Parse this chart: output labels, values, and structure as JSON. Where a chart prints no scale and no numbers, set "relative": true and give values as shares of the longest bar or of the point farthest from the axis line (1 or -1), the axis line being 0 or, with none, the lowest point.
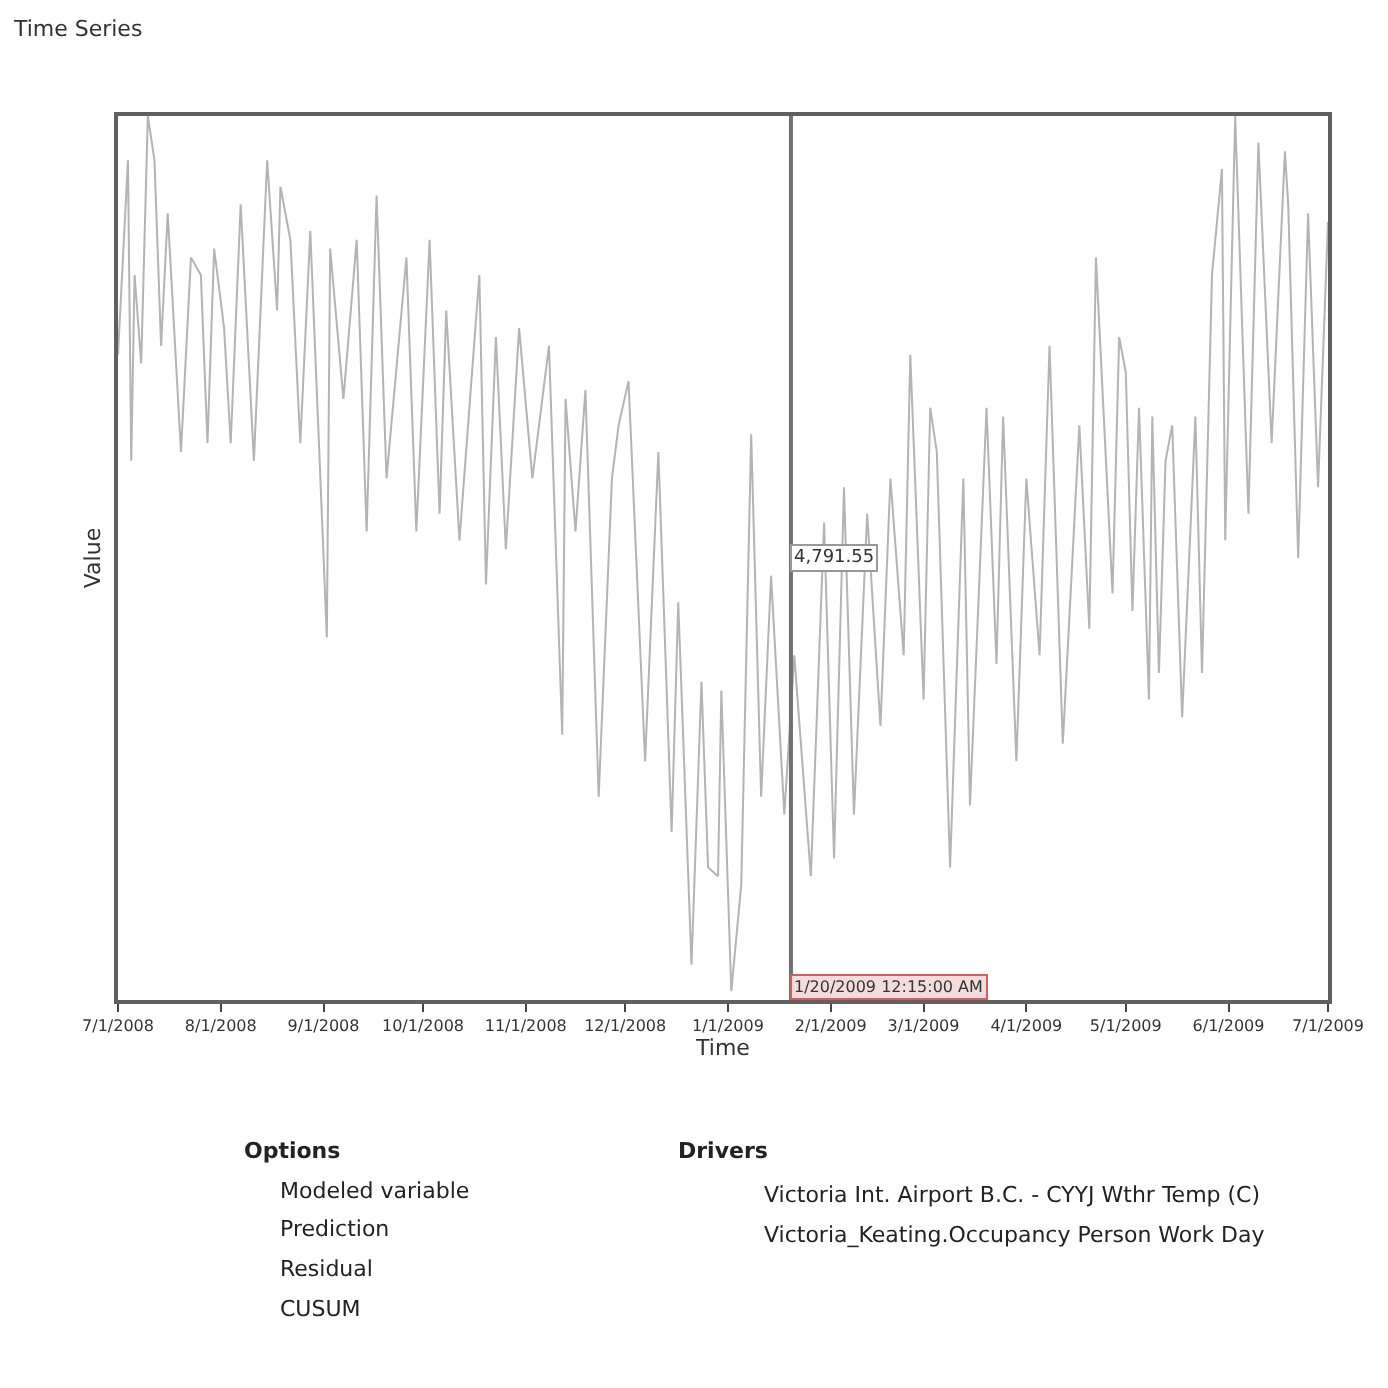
{
  "chart_data": {
    "type": "line",
    "title": "Time Series",
    "xlabel": "Time",
    "ylabel": "Value",
    "relative": true,
    "x": [
      "2008-07-01",
      "2008-07-04",
      "2008-07-05",
      "2008-07-06",
      "2008-07-08",
      "2008-07-10",
      "2008-07-12",
      "2008-07-14",
      "2008-07-16",
      "2008-07-20",
      "2008-07-23",
      "2008-07-26",
      "2008-07-28",
      "2008-07-30",
      "2008-08-02",
      "2008-08-04",
      "2008-08-07",
      "2008-08-11",
      "2008-08-15",
      "2008-08-18",
      "2008-08-19",
      "2008-08-22",
      "2008-08-25",
      "2008-08-28",
      "2008-09-02",
      "2008-09-03",
      "2008-09-07",
      "2008-09-11",
      "2008-09-14",
      "2008-09-17",
      "2008-09-20",
      "2008-09-26",
      "2008-09-29",
      "2008-10-03",
      "2008-10-06",
      "2008-10-08",
      "2008-10-12",
      "2008-10-18",
      "2008-10-20",
      "2008-10-23",
      "2008-10-26",
      "2008-10-30",
      "2008-11-03",
      "2008-11-08",
      "2008-11-12",
      "2008-11-13",
      "2008-11-16",
      "2008-11-19",
      "2008-11-23",
      "2008-11-27",
      "2008-11-29",
      "2008-12-02",
      "2008-12-07",
      "2008-12-11",
      "2008-12-15",
      "2008-12-17",
      "2008-12-21",
      "2008-12-24",
      "2008-12-26",
      "2008-12-29",
      "2008-12-30",
      "2009-01-02",
      "2009-01-05",
      "2009-01-08",
      "2009-01-11",
      "2009-01-14",
      "2009-01-18",
      "2009-01-21",
      "2009-01-26",
      "2009-01-30",
      "2009-02-02",
      "2009-02-05",
      "2009-02-08",
      "2009-02-12",
      "2009-02-16",
      "2009-02-19",
      "2009-02-23",
      "2009-02-25",
      "2009-03-01",
      "2009-03-03",
      "2009-03-05",
      "2009-03-09",
      "2009-03-13",
      "2009-03-15",
      "2009-03-20",
      "2009-03-23",
      "2009-03-25",
      "2009-03-29",
      "2009-04-01",
      "2009-04-05",
      "2009-04-08",
      "2009-04-12",
      "2009-04-17",
      "2009-04-20",
      "2009-04-22",
      "2009-04-27",
      "2009-04-29",
      "2009-05-01",
      "2009-05-03",
      "2009-05-05",
      "2009-05-08",
      "2009-05-09",
      "2009-05-11",
      "2009-05-13",
      "2009-05-15",
      "2009-05-18",
      "2009-05-22",
      "2009-05-24",
      "2009-05-27",
      "2009-05-30",
      "2009-05-31",
      "2009-06-03",
      "2009-06-07",
      "2009-06-10",
      "2009-06-14",
      "2009-06-18",
      "2009-06-19",
      "2009-06-22",
      "2009-06-25",
      "2009-06-28",
      "2009-07-01"
    ],
    "series": [
      {
        "color": "#b4b4b4",
        "values": [
          0.73,
          0.95,
          0.61,
          0.82,
          0.72,
          1.0,
          0.95,
          0.74,
          0.89,
          0.62,
          0.84,
          0.82,
          0.63,
          0.85,
          0.76,
          0.63,
          0.9,
          0.61,
          0.95,
          0.78,
          0.92,
          0.86,
          0.63,
          0.87,
          0.41,
          0.85,
          0.68,
          0.86,
          0.53,
          0.91,
          0.59,
          0.84,
          0.53,
          0.86,
          0.55,
          0.78,
          0.52,
          0.82,
          0.47,
          0.75,
          0.51,
          0.76,
          0.59,
          0.74,
          0.3,
          0.68,
          0.53,
          0.69,
          0.23,
          0.59,
          0.65,
          0.7,
          0.27,
          0.62,
          0.19,
          0.45,
          0.04,
          0.36,
          0.15,
          0.14,
          0.35,
          0.01,
          0.13,
          0.64,
          0.23,
          0.48,
          0.21,
          0.39,
          0.14,
          0.54,
          0.16,
          0.58,
          0.21,
          0.55,
          0.31,
          0.59,
          0.39,
          0.73,
          0.34,
          0.67,
          0.62,
          0.15,
          0.59,
          0.22,
          0.67,
          0.38,
          0.66,
          0.27,
          0.59,
          0.39,
          0.74,
          0.29,
          0.65,
          0.42,
          0.84,
          0.46,
          0.75,
          0.71,
          0.44,
          0.67,
          0.34,
          0.66,
          0.37,
          0.61,
          0.65,
          0.32,
          0.66,
          0.37,
          0.82,
          0.94,
          0.52,
          1.0,
          0.55,
          0.97,
          0.63,
          0.96,
          0.9,
          0.5,
          0.89,
          0.58,
          0.88
        ]
      }
    ],
    "xlim": [
      "2008-07-01",
      "2009-07-01"
    ],
    "xticks": [
      {
        "value": "2008-07-01",
        "label": "7/1/2008"
      },
      {
        "value": "2008-08-01",
        "label": "8/1/2008"
      },
      {
        "value": "2008-09-01",
        "label": "9/1/2008"
      },
      {
        "value": "2008-10-01",
        "label": "10/1/2008"
      },
      {
        "value": "2008-11-01",
        "label": "11/1/2008"
      },
      {
        "value": "2008-12-01",
        "label": "12/1/2008"
      },
      {
        "value": "2009-01-01",
        "label": "1/1/2009"
      },
      {
        "value": "2009-02-01",
        "label": "2/1/2009"
      },
      {
        "value": "2009-03-01",
        "label": "3/1/2009"
      },
      {
        "value": "2009-04-01",
        "label": "4/1/2009"
      },
      {
        "value": "2009-05-01",
        "label": "5/1/2009"
      },
      {
        "value": "2009-06-01",
        "label": "6/1/2009"
      },
      {
        "value": "2009-07-01",
        "label": "7/1/2009"
      }
    ],
    "ref_lines": [
      {
        "axis": "x",
        "value": "2009-01-20",
        "label": "1/20/2009 12:15:00 AM",
        "color": "#707070"
      }
    ],
    "annotations": [
      "4,791.55",
      "Options",
      "Modeled variable",
      "Prediction",
      "Residual",
      "CUSUM",
      "Drivers",
      "Victoria Int. Airport B.C. - CYYJ Wthr Temp (C)",
      "Victoria_Keating.Occupancy Person Work Day"
    ],
    "marker": "none",
    "line_style": "solid"
  }
}
